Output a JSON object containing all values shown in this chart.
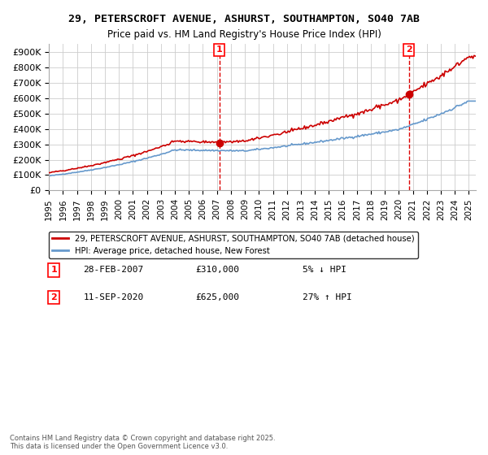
{
  "title_line1": "29, PETERSCROFT AVENUE, ASHURST, SOUTHAMPTON, SO40 7AB",
  "title_line2": "Price paid vs. HM Land Registry's House Price Index (HPI)",
  "ylabel_ticks": [
    "£0",
    "£100K",
    "£200K",
    "£300K",
    "£400K",
    "£500K",
    "£600K",
    "£700K",
    "£800K",
    "£900K"
  ],
  "ytick_values": [
    0,
    100000,
    200000,
    300000,
    400000,
    500000,
    600000,
    700000,
    800000,
    900000
  ],
  "ylim": [
    0,
    950000
  ],
  "xlim_start": 1995.0,
  "xlim_end": 2025.5,
  "sale1_x": 2007.167,
  "sale1_y": 310000,
  "sale1_label": "1",
  "sale2_x": 2020.708,
  "sale2_y": 625000,
  "sale2_label": "2",
  "vline1_x": 2007.167,
  "vline2_x": 2020.708,
  "vline_color": "#dd0000",
  "vline_style": "--",
  "property_color": "#cc0000",
  "hpi_color": "#6699cc",
  "legend_label1": "29, PETERSCROFT AVENUE, ASHURST, SOUTHAMPTON, SO40 7AB (detached house)",
  "legend_label2": "HPI: Average price, detached house, New Forest",
  "annotation1_date": "28-FEB-2007",
  "annotation1_price": "£310,000",
  "annotation1_hpi": "5% ↓ HPI",
  "annotation2_date": "11-SEP-2020",
  "annotation2_price": "£625,000",
  "annotation2_hpi": "27% ↑ HPI",
  "footer_text": "Contains HM Land Registry data © Crown copyright and database right 2025.\nThis data is licensed under the Open Government Licence v3.0.",
  "grid_color": "#cccccc",
  "background_color": "#ffffff"
}
